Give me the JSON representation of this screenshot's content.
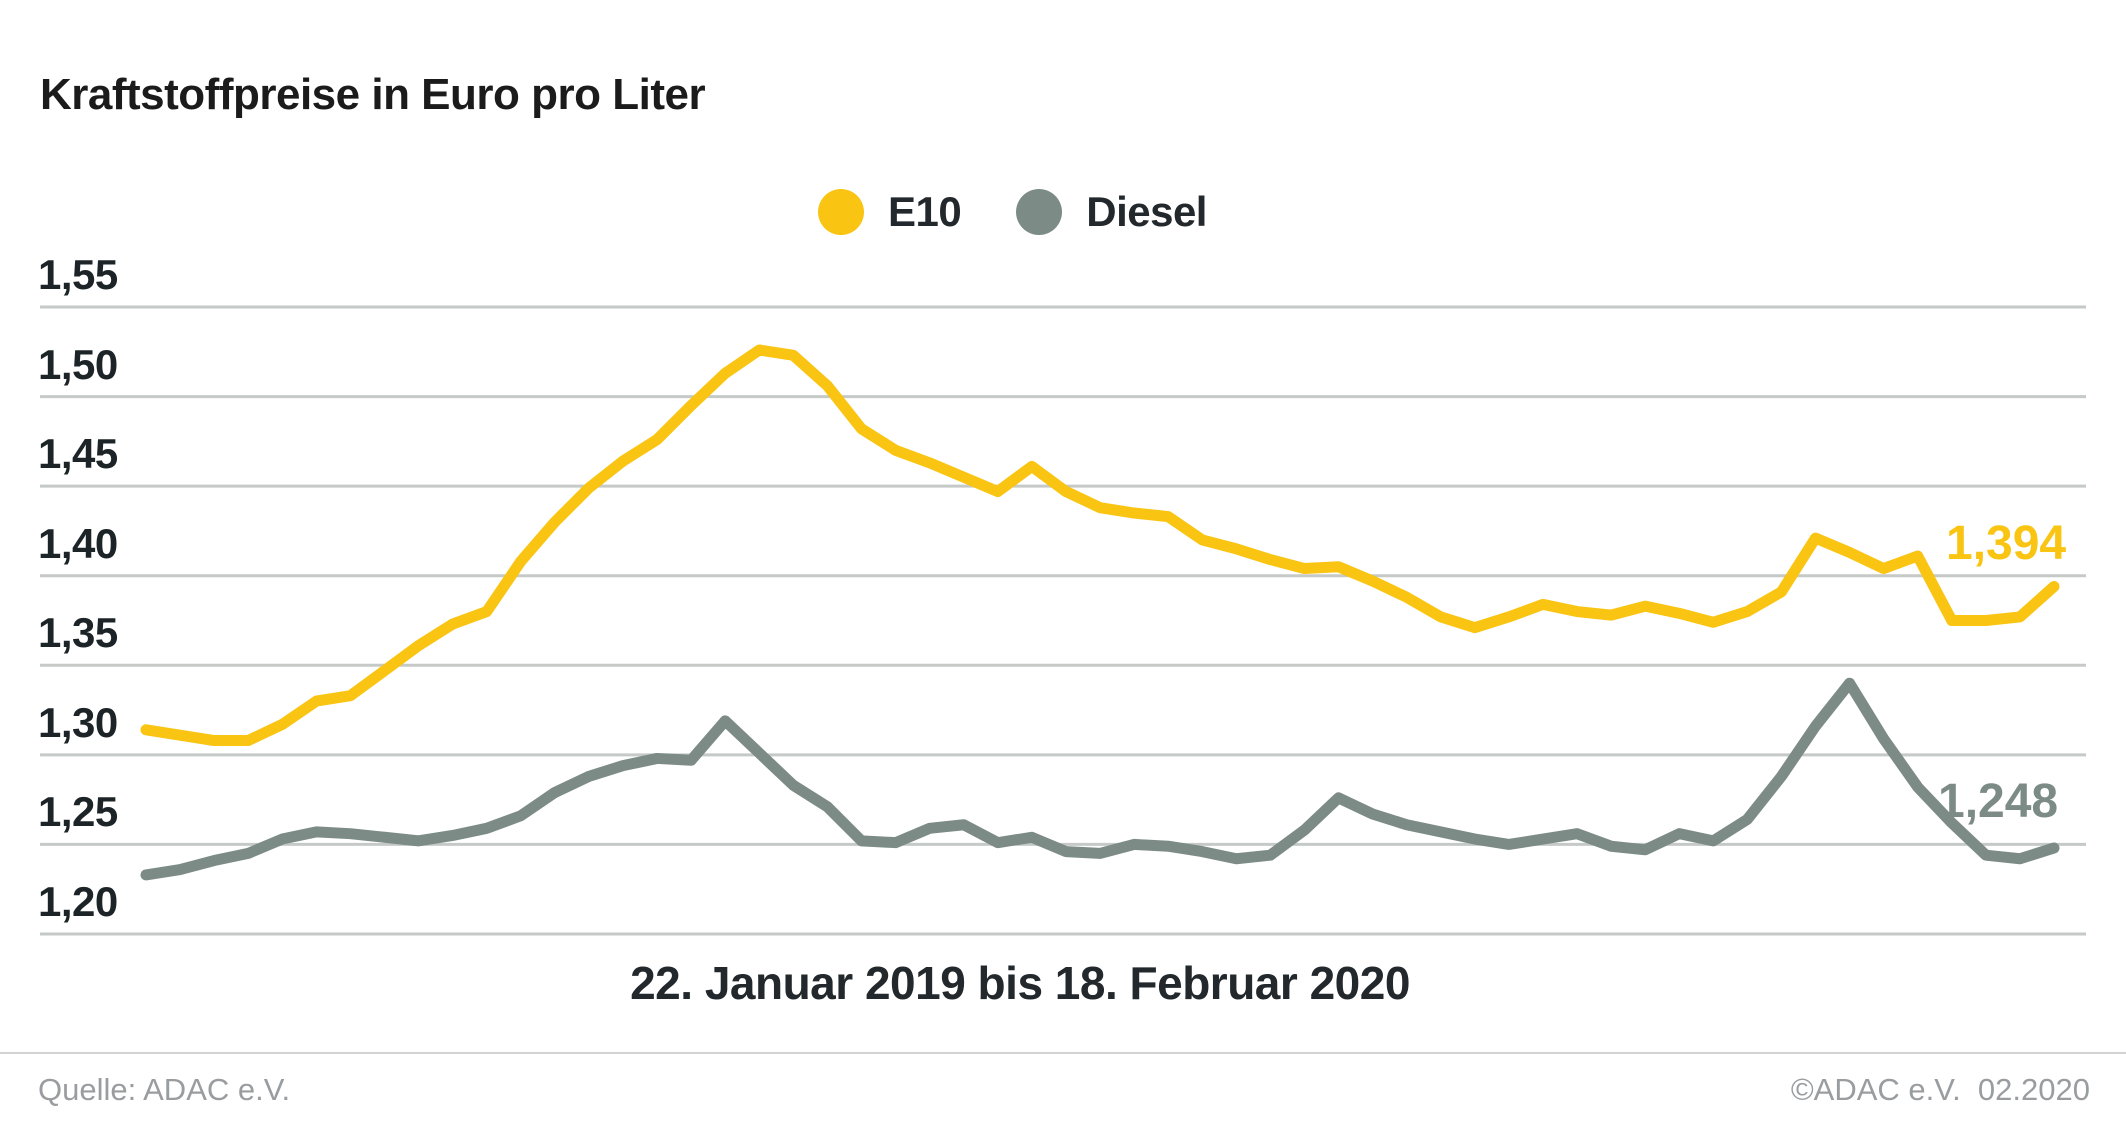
{
  "title": "Kraftstoffpreise in Euro pro Liter",
  "legend": {
    "items": [
      {
        "label": "E10",
        "color": "#F9C412"
      },
      {
        "label": "Diesel",
        "color": "#7C8B86"
      }
    ]
  },
  "axis": {
    "y_tick_labels": [
      "1,55",
      "1,50",
      "1,45",
      "1,40",
      "1,35",
      "1,30",
      "1,25",
      "1,20"
    ]
  },
  "caption": "22. Januar 2019 bis 18. Februar 2020",
  "end_labels": {
    "e10": "1,394",
    "diesel": "1,248"
  },
  "footer": {
    "source": "Quelle: ADAC e.V.",
    "copyright": "©ADAC e.V.  02.2020"
  },
  "colors": {
    "e10": "#F9C412",
    "diesel": "#7C8B86",
    "grid": "#C5CAC7",
    "text": "#1d2428",
    "footer_text": "#9a9da0"
  },
  "chart_data": {
    "type": "line",
    "title": "Kraftstoffpreise in Euro pro Liter",
    "ylabel": "Euro pro Liter",
    "xlabel": "22. Januar 2019 bis 18. Februar 2020",
    "x_start": "22. Januar 2019",
    "x_end": "18. Februar 2020",
    "x_interval": "weekly",
    "ylim": [
      1.2,
      1.55
    ],
    "y_ticks": [
      1.2,
      1.25,
      1.3,
      1.35,
      1.4,
      1.45,
      1.5,
      1.55
    ],
    "grid": true,
    "legend_position": "top",
    "last_value_labels": {
      "E10": "1,394",
      "Diesel": "1,248"
    },
    "series": [
      {
        "name": "E10",
        "color": "#F9C412",
        "last_value": 1.394,
        "values": [
          1.314,
          1.311,
          1.308,
          1.308,
          1.317,
          1.33,
          1.333,
          1.347,
          1.361,
          1.373,
          1.38,
          1.408,
          1.43,
          1.449,
          1.464,
          1.476,
          1.495,
          1.513,
          1.526,
          1.523,
          1.506,
          1.482,
          1.47,
          1.463,
          1.455,
          1.447,
          1.461,
          1.447,
          1.438,
          1.435,
          1.433,
          1.42,
          1.415,
          1.409,
          1.404,
          1.405,
          1.397,
          1.388,
          1.377,
          1.371,
          1.377,
          1.384,
          1.38,
          1.378,
          1.383,
          1.379,
          1.374,
          1.38,
          1.391,
          1.421,
          1.413,
          1.404,
          1.411,
          1.375,
          1.375,
          1.377,
          1.394
        ]
      },
      {
        "name": "Diesel",
        "color": "#7C8B86",
        "last_value": 1.248,
        "values": [
          1.233,
          1.236,
          1.241,
          1.245,
          1.253,
          1.257,
          1.256,
          1.254,
          1.252,
          1.255,
          1.259,
          1.266,
          1.279,
          1.288,
          1.294,
          1.298,
          1.297,
          1.319,
          1.301,
          1.283,
          1.271,
          1.252,
          1.251,
          1.259,
          1.261,
          1.251,
          1.254,
          1.246,
          1.245,
          1.25,
          1.249,
          1.246,
          1.242,
          1.244,
          1.258,
          1.276,
          1.267,
          1.261,
          1.257,
          1.253,
          1.25,
          1.253,
          1.256,
          1.249,
          1.247,
          1.256,
          1.252,
          1.264,
          1.288,
          1.316,
          1.34,
          1.309,
          1.282,
          1.262,
          1.244,
          1.242,
          1.248
        ]
      }
    ]
  }
}
